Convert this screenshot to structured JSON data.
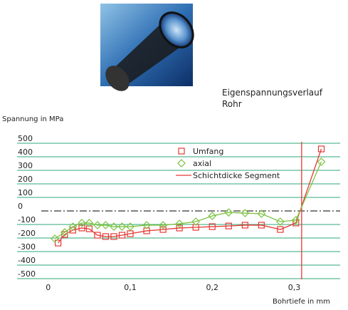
{
  "image_caption": [
    "Eigenspannungsverlauf",
    "Rohr"
  ],
  "chart_data": {
    "type": "line",
    "ylabel": "Spannung in MPa",
    "xlabel": "Bohrtiefe in mm",
    "xlim": [
      -0.038,
      0.356
    ],
    "ylim": [
      -500,
      500
    ],
    "xticks": [
      0,
      {
        "value": 0.1,
        "label": "0,1"
      },
      {
        "value": 0.2,
        "label": "0,2"
      },
      {
        "value": 0.3,
        "label": "0,3"
      }
    ],
    "yticks": [
      500,
      400,
      300,
      200,
      100,
      0,
      -100,
      -200,
      -300,
      -400,
      -500
    ],
    "grid": true,
    "grid_color": "#2eaa7a",
    "zero_line_style": "dashdot",
    "series": [
      {
        "name": "Umfang",
        "color": "#e53935",
        "marker": "square",
        "x": [
          0.012,
          0.02,
          0.03,
          0.041,
          0.05,
          0.06,
          0.07,
          0.08,
          0.09,
          0.1,
          0.12,
          0.14,
          0.16,
          0.18,
          0.2,
          0.22,
          0.24,
          0.26,
          0.283,
          0.302,
          0.333
        ],
        "values": [
          -237,
          -174,
          -142,
          -126,
          -132,
          -179,
          -189,
          -189,
          -179,
          -168,
          -147,
          -137,
          -126,
          -121,
          -116,
          -111,
          -105,
          -105,
          -137,
          -89,
          458
        ]
      },
      {
        "name": "axial",
        "color": "#7cc242",
        "marker": "diamond",
        "x": [
          0.008,
          0.02,
          0.03,
          0.041,
          0.05,
          0.06,
          0.07,
          0.08,
          0.09,
          0.1,
          0.12,
          0.14,
          0.16,
          0.18,
          0.2,
          0.22,
          0.24,
          0.26,
          0.283,
          0.302,
          0.333
        ],
        "values": [
          -205,
          -158,
          -116,
          -89,
          -89,
          -105,
          -105,
          -116,
          -116,
          -116,
          -105,
          -105,
          -95,
          -79,
          -37,
          -11,
          -16,
          -21,
          -79,
          -68,
          363
        ]
      }
    ],
    "reference_lines": [
      {
        "name": "Schichtdicke Segment",
        "x": 0.309,
        "color": "#e53935"
      }
    ]
  }
}
